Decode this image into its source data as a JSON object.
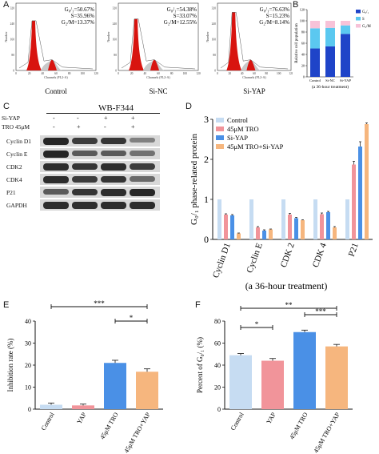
{
  "panels": {
    "a": "A",
    "b": "B",
    "c": "C",
    "d": "D",
    "e": "E",
    "f": "F"
  },
  "flow": {
    "ylabel": "Number",
    "xlabel": "Channels (FL2-A)",
    "yticks": [
      "0",
      "80",
      "160",
      "240",
      "320"
    ],
    "xticks": [
      "0",
      "20",
      "40",
      "60",
      "80",
      "100",
      "120"
    ],
    "histograms": [
      {
        "label": "Control",
        "g01": "G₀/₁=50.67%",
        "s": "S=35.96%",
        "g2m": "G₂/M=13.37%"
      },
      {
        "label": "Si-NC",
        "g01": "G₀/₁=54.38%",
        "s": "S=33.07%",
        "g2m": "G₂/M=12.55%"
      },
      {
        "label": "Si-YAP",
        "g01": "G₀/₁=76.63%",
        "s": "S=15.23%",
        "g2m": "G₂/M=8.14%"
      }
    ]
  },
  "blot": {
    "title": "WB-F344",
    "row1_label": "Si-YAP",
    "row2_label": "TRO 45μM",
    "row1_signs": [
      "-",
      "-",
      "+",
      "+"
    ],
    "row2_signs": [
      "-",
      "+",
      "-",
      "+"
    ],
    "bands": [
      "Cyclin D1",
      "Cyclin E",
      "CDK2",
      "CDK4",
      "P21",
      "GAPDH"
    ]
  },
  "colors": {
    "control": "#c6dcf2",
    "tro": "#f1949a",
    "siyap": "#4a90e6",
    "combo": "#f6b67e",
    "g01": "#1f44c8",
    "s": "#5bc8f0",
    "g2m": "#f7c2d8",
    "flow_fill": "#d8140f"
  },
  "chart_data": [
    {
      "panel": "B",
      "type": "bar",
      "stacked": true,
      "categories": [
        "Control",
        "Si-NC",
        "Si-YAP"
      ],
      "xlabel": "(a 36-hour treatment)",
      "ylabel": "Relative cell population",
      "ylim": [
        0,
        120
      ],
      "yticks": [
        "0",
        "20",
        "40",
        "60",
        "80",
        "100",
        "120"
      ],
      "series": [
        {
          "name": "G₀/₁",
          "values": [
            50.67,
            54.38,
            76.63
          ]
        },
        {
          "name": "S",
          "values": [
            35.96,
            33.07,
            15.23
          ]
        },
        {
          "name": "G₂/M",
          "values": [
            13.37,
            12.55,
            8.14
          ]
        }
      ],
      "legend": "right"
    },
    {
      "panel": "D",
      "type": "bar",
      "categories": [
        "Cyclin D1",
        "Cyclin E",
        "CDK 2",
        "CDK 4",
        "P21"
      ],
      "xlabel": "(a 36-hour treatment)",
      "ylabel": "G₀/₁ phase-related protein",
      "ylim": [
        0,
        3
      ],
      "yticks": [
        "0",
        "1",
        "2",
        "3"
      ],
      "series": [
        {
          "name": "Control",
          "values": [
            1,
            1,
            1,
            1,
            1
          ]
        },
        {
          "name": "45μM TRO",
          "values": [
            0.62,
            0.3,
            0.62,
            0.63,
            1.87
          ]
        },
        {
          "name": "Si-YAP",
          "values": [
            0.6,
            0.22,
            0.53,
            0.68,
            2.32
          ]
        },
        {
          "name": "45μM TRO+Si-YAP",
          "values": [
            0.15,
            0.25,
            0.48,
            0.3,
            2.88
          ]
        }
      ],
      "errors": [
        [
          0,
          0,
          0,
          0,
          0
        ],
        [
          0.02,
          0.02,
          0.03,
          0.03,
          0.08
        ],
        [
          0.02,
          0.02,
          0.02,
          0.02,
          0.12
        ],
        [
          0.01,
          0.01,
          0.01,
          0.02,
          0.03
        ]
      ],
      "legend": "top-left"
    },
    {
      "panel": "E",
      "type": "bar",
      "categories": [
        "Control",
        "YAP",
        "45μM TRO",
        "45μM TRO+YAP"
      ],
      "ylabel": "Inhibition rate (%)",
      "ylim": [
        0,
        40
      ],
      "yticks": [
        "0",
        "10",
        "20",
        "30",
        "40"
      ],
      "values": [
        2,
        1.7,
        21,
        17
      ],
      "errors": [
        0.8,
        0.6,
        1.2,
        1.3
      ],
      "significance": [
        {
          "from": 0,
          "to": 3,
          "label": "***"
        },
        {
          "from": 2,
          "to": 3,
          "label": "*"
        }
      ]
    },
    {
      "panel": "F",
      "type": "bar",
      "categories": [
        "Control",
        "YAP",
        "45μM TRO",
        "45μM TRO+YAP"
      ],
      "ylabel": "Percent of G₀/₁ (%)",
      "ylim": [
        0,
        80
      ],
      "yticks": [
        "0",
        "20",
        "40",
        "60",
        "80"
      ],
      "values": [
        49,
        44,
        70,
        57
      ],
      "errors": [
        1.5,
        2,
        1.8,
        1.8
      ],
      "significance": [
        {
          "from": 0,
          "to": 3,
          "label": "**"
        },
        {
          "from": 0,
          "to": 1,
          "label": "*"
        },
        {
          "from": 2,
          "to": 3,
          "label": "***"
        }
      ]
    }
  ]
}
